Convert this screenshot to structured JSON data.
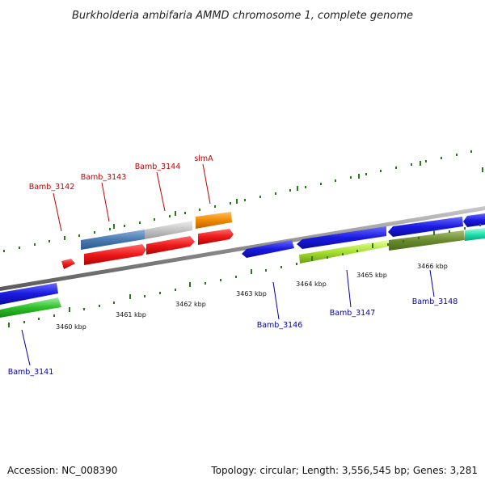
{
  "title": "Burkholderia ambifaria AMMD chromosome 1, complete genome",
  "footer": {
    "accession": "Accession: NC_008390",
    "topology": "Topology: circular; Length: 3,556,545 bp; Genes: 3,281"
  },
  "scale_labels": [
    "3460 kbp",
    "3461 kbp",
    "3462 kbp",
    "3463 kbp",
    "3464 kbp",
    "3465 kbp",
    "3466 kbp"
  ],
  "colors": {
    "backbone": "#8a8a8a",
    "tick": "#2a7a1a",
    "forward_label": "#c00000",
    "reverse_label": "#0000aa"
  },
  "gene_labels": {
    "forward": [
      "Bamb_3142",
      "Bamb_3143",
      "Bamb_3144",
      "slmA"
    ],
    "reverse": [
      "Bamb_3141",
      "Bamb_3146",
      "Bamb_3147",
      "Bamb_3148"
    ]
  },
  "legend_icon": "genome-map-icon"
}
